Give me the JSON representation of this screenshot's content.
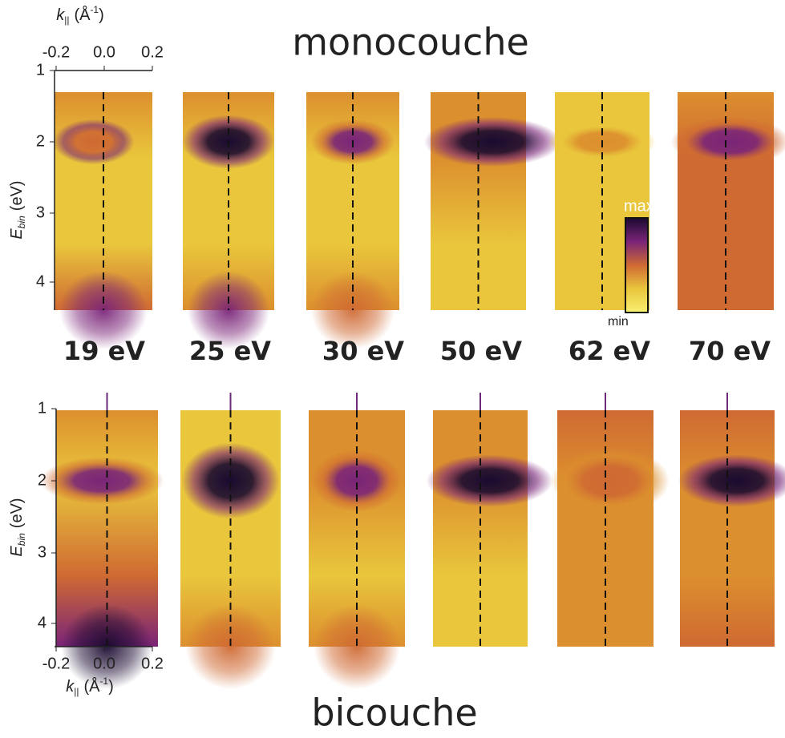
{
  "top_title": "monocouche",
  "bottom_title": "bicouche",
  "photon_energies": [
    "19 eV",
    "25 eV",
    "30 eV",
    "50 eV",
    "62 eV",
    "70 eV"
  ],
  "k_axis": {
    "symbol": "k",
    "subscript": "||",
    "unit_open": "(Å",
    "unit_power": "-1",
    "unit_close": ")",
    "ticks": [
      "-0.2",
      "0.0",
      "0.2"
    ]
  },
  "e_axis": {
    "symbol": "E",
    "subscript": "bin",
    "unit": "(eV)",
    "ticks": [
      "1",
      "2",
      "3",
      "4"
    ]
  },
  "colorbar": {
    "max_label": "max",
    "min_label": "min"
  }
}
